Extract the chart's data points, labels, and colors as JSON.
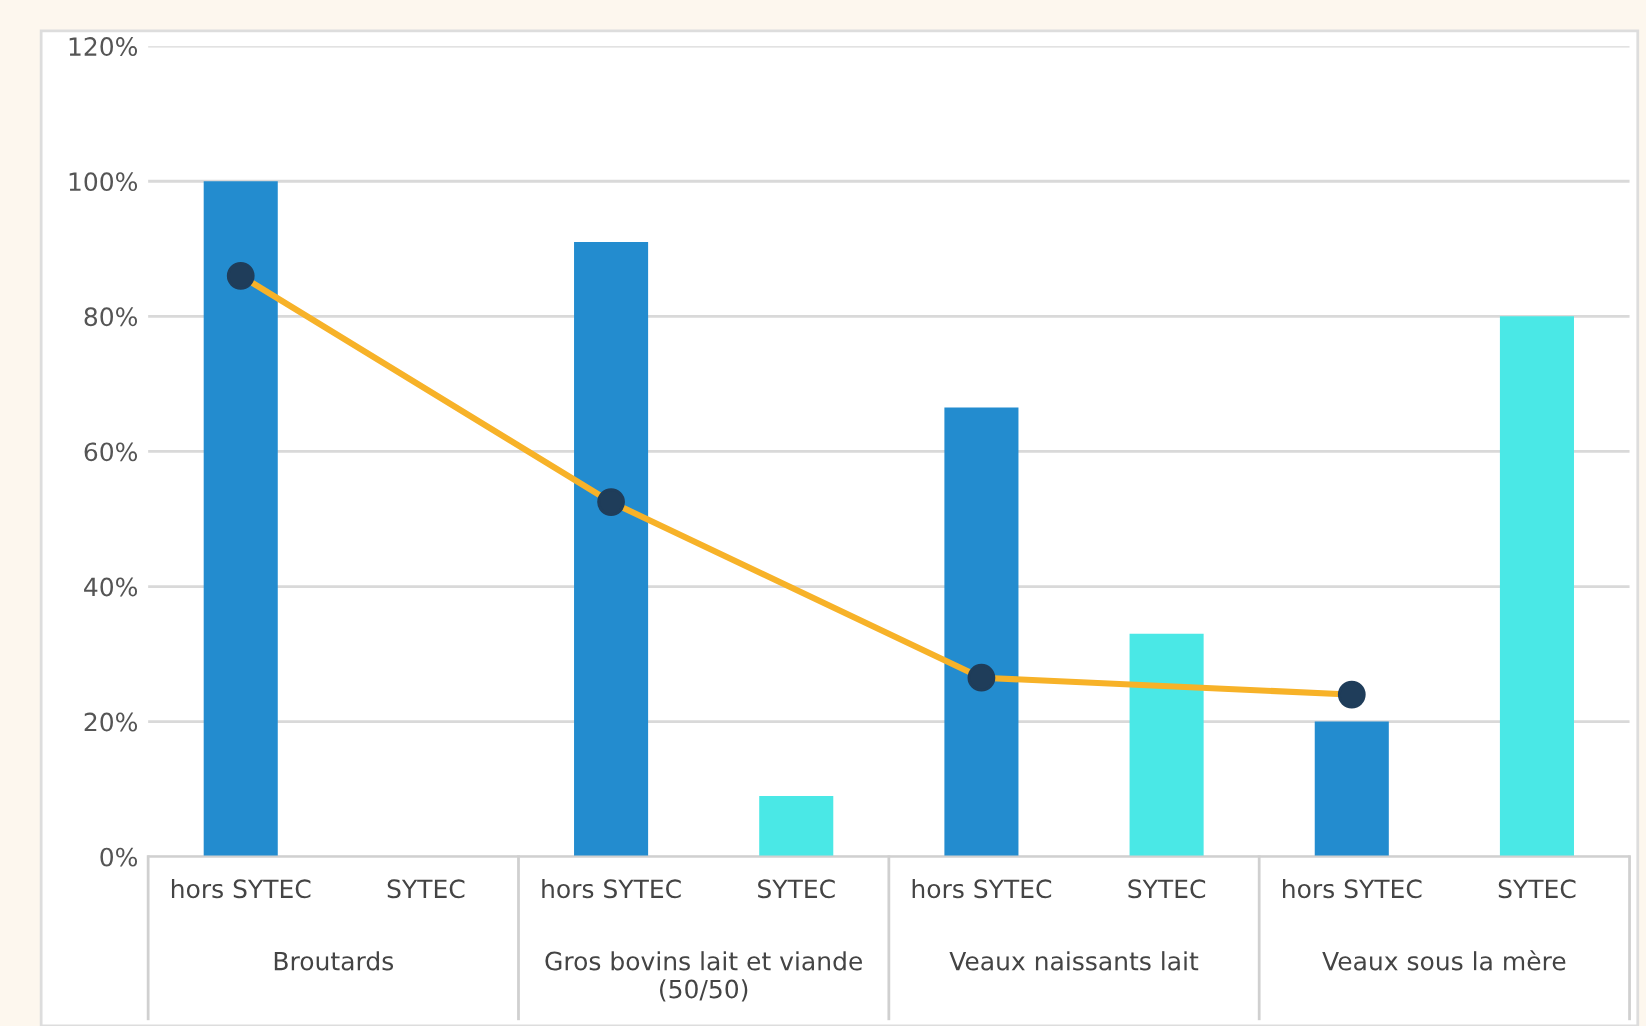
{
  "chart_data": {
    "type": "bar",
    "categories": [
      "hors SYTEC",
      "SYTEC",
      "hors SYTEC",
      "SYTEC",
      "hors SYTEC",
      "SYTEC",
      "hors SYTEC",
      "SYTEC"
    ],
    "annotations": [
      "Broutards",
      "Gros bovins lait et viande\n(50/50)",
      "Veaux naissants lait",
      "Veaux sous la mère"
    ],
    "series": [
      {
        "values": [
          100,
          null,
          91,
          9,
          66.5,
          33,
          20,
          80
        ],
        "colors": [
          "#238ccf",
          "#4ae8e6",
          "#238ccf",
          "#4ae8e6",
          "#238ccf",
          "#4ae8e6",
          "#238ccf",
          "#4ae8e6"
        ]
      },
      {
        "type": "line",
        "color": "#f7b228",
        "marker": "circle",
        "values": [
          86,
          null,
          52.5,
          null,
          26.5,
          null,
          24,
          null
        ]
      }
    ],
    "ylim": [
      0,
      120
    ],
    "yticks": [
      {
        "value": 0,
        "label": "0%"
      },
      {
        "value": 20,
        "label": "20%"
      },
      {
        "value": 40,
        "label": "40%"
      },
      {
        "value": 60,
        "label": "60%"
      },
      {
        "value": 80,
        "label": "80%"
      },
      {
        "value": 100,
        "label": "100%"
      },
      {
        "value": 120,
        "label": "120%"
      }
    ],
    "grid": "y"
  }
}
